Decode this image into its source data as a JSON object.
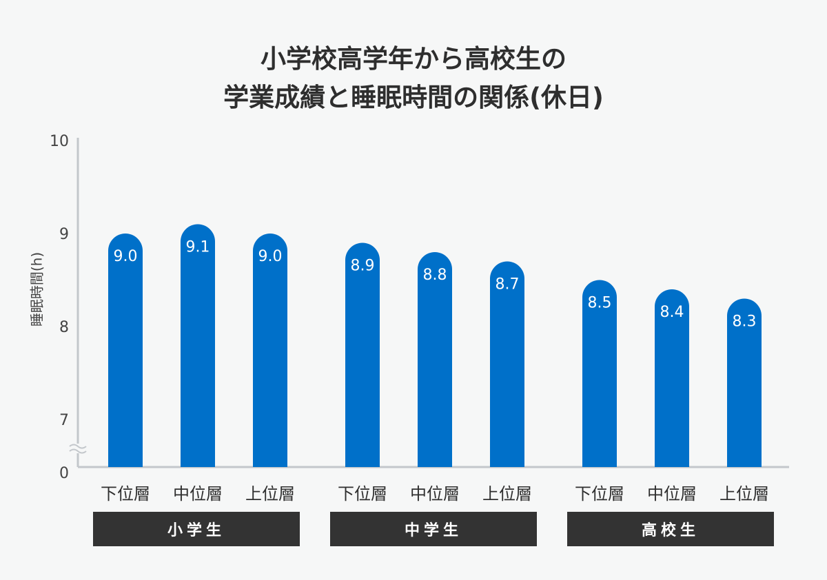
{
  "chart_data": {
    "type": "bar",
    "title_lines": [
      "小学校高学年から高校生の",
      "学業成績と睡眠時間の関係(休日)"
    ],
    "ylabel": "睡眠時間(h)",
    "xlabel": "",
    "ylim": [
      7,
      10
    ],
    "axis_break": true,
    "yticks": [
      "0",
      "7",
      "8",
      "9",
      "10"
    ],
    "grid": false,
    "groups": [
      {
        "name": "小学生",
        "categories": [
          "下位層",
          "中位層",
          "上位層"
        ],
        "values": [
          9.0,
          9.1,
          9.0
        ]
      },
      {
        "name": "中学生",
        "categories": [
          "下位層",
          "中位層",
          "上位層"
        ],
        "values": [
          8.9,
          8.8,
          8.7
        ]
      },
      {
        "name": "高校生",
        "categories": [
          "下位層",
          "中位層",
          "上位層"
        ],
        "values": [
          8.5,
          8.4,
          8.3
        ]
      }
    ],
    "colors": {
      "bar": "#0070c9",
      "bar_label": "#ffffff",
      "group_box": "#333333",
      "axis": "#c3c7cb",
      "background": "#f6f7f7"
    }
  }
}
